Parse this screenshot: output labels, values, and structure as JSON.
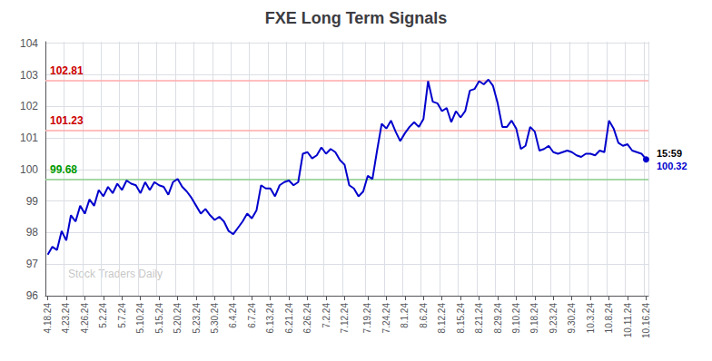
{
  "chart_data": {
    "type": "line",
    "title": "FXE Long Term Signals",
    "color": "#0000cc",
    "grid": true,
    "ylim": [
      96,
      104.05
    ],
    "yticks": [
      96,
      97,
      98,
      99,
      100,
      101,
      102,
      103,
      104
    ],
    "categories": [
      "4.18.24",
      null,
      null,
      null,
      "4.23.24",
      null,
      null,
      null,
      "4.26.24",
      null,
      null,
      null,
      "5.2.24",
      null,
      null,
      null,
      "5.7.24",
      null,
      null,
      null,
      "5.10.24",
      null,
      null,
      null,
      "5.15.24",
      null,
      null,
      null,
      "5.20.24",
      null,
      null,
      null,
      "5.23.24",
      null,
      null,
      null,
      "5.30.24",
      null,
      null,
      null,
      "6.4.24",
      null,
      null,
      null,
      "6.7.24",
      null,
      null,
      null,
      "6.13.24",
      null,
      null,
      null,
      "6.21.24",
      null,
      null,
      null,
      "6.26.24",
      null,
      null,
      null,
      "7.2.24",
      null,
      null,
      null,
      "7.12.24",
      null,
      null,
      null,
      null,
      "7.19.24",
      null,
      null,
      null,
      "7.24.24",
      null,
      null,
      null,
      "8.1.24",
      null,
      null,
      null,
      "8.6.24",
      null,
      null,
      null,
      "8.12.24",
      null,
      null,
      null,
      "8.15.24",
      null,
      null,
      null,
      "8.21.24",
      null,
      null,
      null,
      "8.29.24",
      null,
      null,
      null,
      "9.10.24",
      null,
      null,
      null,
      "9.18.24",
      null,
      null,
      null,
      "9.23.24",
      null,
      null,
      null,
      "9.30.24",
      null,
      null,
      null,
      "10.3.24",
      null,
      null,
      null,
      "10.8.24",
      null,
      null,
      null,
      "10.11.24",
      null,
      null,
      null,
      "10.16.24"
    ],
    "values": [
      97.3,
      97.55,
      97.45,
      98.05,
      97.75,
      98.55,
      98.35,
      98.85,
      98.6,
      99.05,
      98.85,
      99.35,
      99.15,
      99.45,
      99.25,
      99.55,
      99.35,
      99.65,
      99.55,
      99.5,
      99.25,
      99.6,
      99.35,
      99.6,
      99.5,
      99.45,
      99.2,
      99.6,
      99.7,
      99.45,
      99.3,
      99.1,
      98.85,
      98.6,
      98.75,
      98.55,
      98.4,
      98.5,
      98.35,
      98.05,
      97.95,
      98.15,
      98.35,
      98.6,
      98.45,
      98.7,
      99.5,
      99.4,
      99.4,
      99.15,
      99.5,
      99.6,
      99.65,
      99.5,
      99.6,
      100.5,
      100.55,
      100.35,
      100.45,
      100.7,
      100.5,
      100.65,
      100.55,
      100.3,
      100.15,
      99.5,
      99.4,
      99.15,
      99.3,
      99.8,
      99.7,
      100.6,
      101.45,
      101.3,
      101.55,
      101.2,
      100.9,
      101.15,
      101.35,
      101.5,
      101.35,
      101.6,
      102.8,
      102.15,
      102.1,
      101.85,
      101.95,
      101.5,
      101.85,
      101.65,
      101.85,
      102.5,
      102.55,
      102.8,
      102.7,
      102.85,
      102.65,
      102.1,
      101.35,
      101.35,
      101.55,
      101.3,
      100.65,
      100.75,
      101.35,
      101.2,
      100.6,
      100.65,
      100.75,
      100.55,
      100.5,
      100.55,
      100.6,
      100.55,
      100.45,
      100.4,
      100.5,
      100.5,
      100.45,
      100.6,
      100.55,
      101.55,
      101.3,
      100.85,
      100.75,
      100.8,
      100.6,
      100.55,
      100.5,
      100.32
    ],
    "hlines": [
      {
        "value": 102.81,
        "label": "102.81",
        "color": "#ffaaaa",
        "label_color": "#cc0000"
      },
      {
        "value": 101.23,
        "label": "101.23",
        "color": "#ffaaaa",
        "label_color": "#cc0000"
      },
      {
        "value": 99.68,
        "label": "99.68",
        "color": "#88cc88",
        "label_color": "#009900"
      }
    ],
    "annotations": [
      {
        "text": "15:59",
        "color": "#000000"
      },
      {
        "text": "100.32",
        "color": "#0000cc"
      }
    ],
    "watermark": {
      "text": "Stock Traders Daily",
      "color": "#bbbbbb"
    }
  }
}
